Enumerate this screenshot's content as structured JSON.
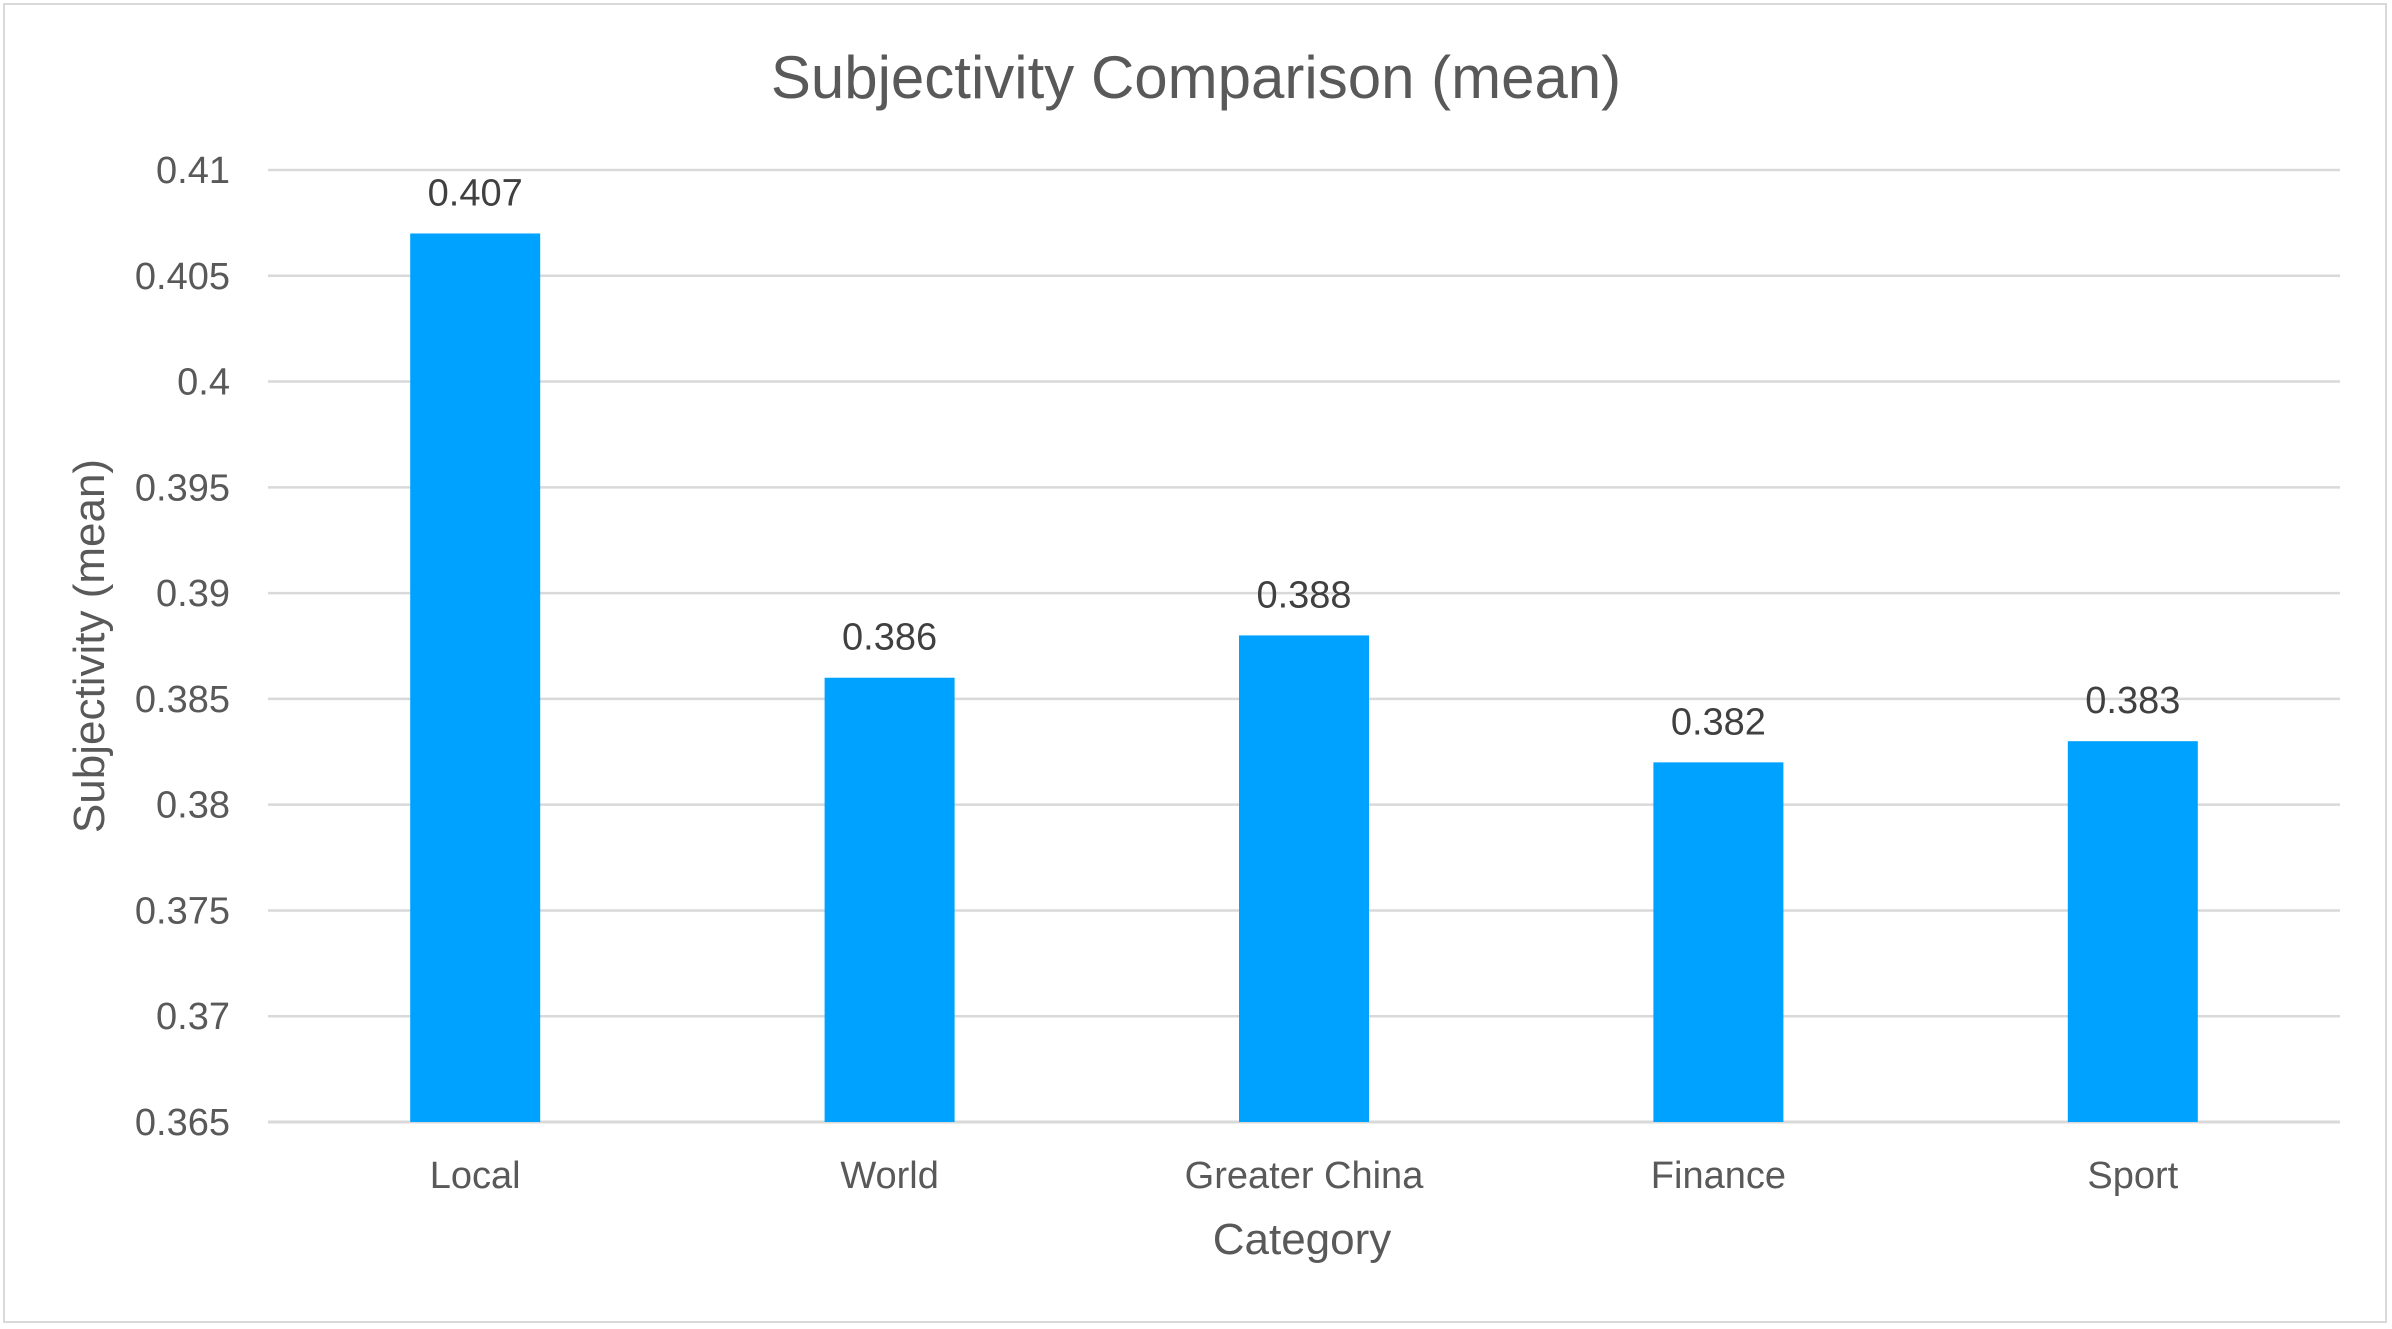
{
  "chart_data": {
    "type": "bar",
    "title": "Subjectivity Comparison (mean)",
    "xlabel": "Category",
    "ylabel": "Subjectivity (mean)",
    "categories": [
      "Local",
      "World",
      "Greater China",
      "Finance",
      "Sport"
    ],
    "values": [
      0.407,
      0.386,
      0.388,
      0.382,
      0.383
    ],
    "data_labels": [
      "0.407",
      "0.386",
      "0.388",
      "0.382",
      "0.383"
    ],
    "ylim": [
      0.365,
      0.41
    ],
    "yticks": [
      "0.365",
      "0.37",
      "0.375",
      "0.38",
      "0.385",
      "0.39",
      "0.395",
      "0.4",
      "0.405",
      "0.41"
    ],
    "bar_color": "#00A2FF",
    "grid": true,
    "legend": "none"
  }
}
